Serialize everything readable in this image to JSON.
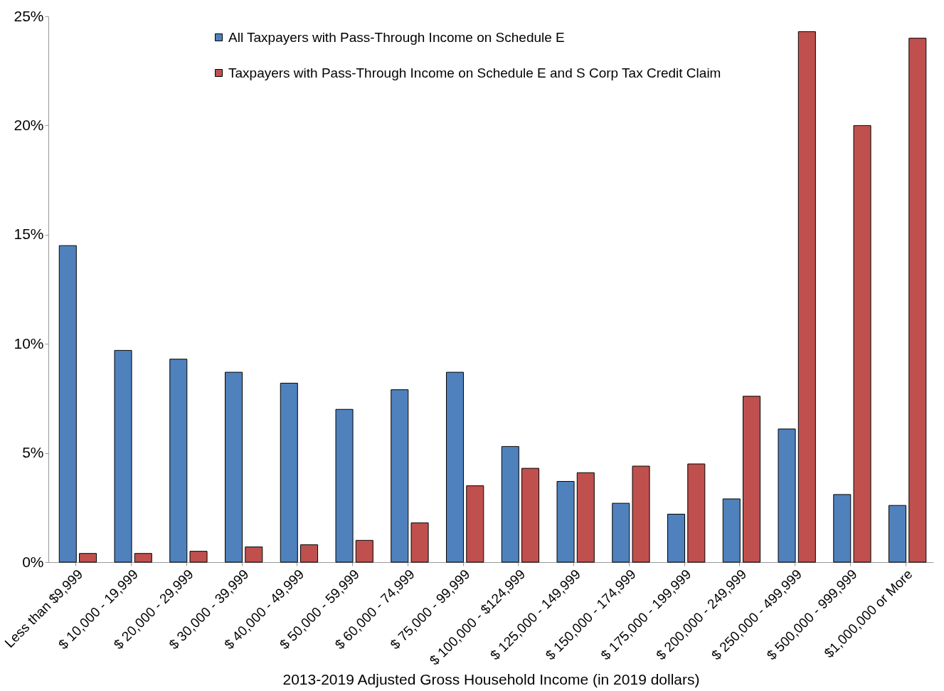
{
  "chart_data": {
    "type": "bar",
    "xlabel": "2013-2019 Adjusted Gross Household Income (in 2019 dollars)",
    "categories": [
      "Less than $9,999",
      "$ 10,000 - 19,999",
      "$ 20,000 - 29,999",
      "$ 30,000 - 39,999",
      "$ 40,000 - 49,999",
      "$ 50,000 - 59,999",
      "$ 60,000 - 74,999",
      "$ 75,000 - 99,999",
      "$ 100,000 - $124,999",
      "$ 125,000 - 149,999",
      "$ 150,000 - 174,999",
      "$ 175,000 - 199,999",
      "$ 200,000 - 249,999",
      "$ 250,000 - 499,999",
      "$ 500,000 - 999,999",
      "$1,000,000 or More"
    ],
    "series": [
      {
        "name": "All Taxpayers with Pass-Through Income on Schedule E",
        "color": "#4f81bd",
        "values": [
          14.5,
          9.7,
          9.3,
          8.7,
          8.2,
          7.0,
          7.9,
          8.7,
          5.3,
          3.7,
          2.7,
          2.2,
          2.9,
          6.1,
          3.1,
          2.6
        ]
      },
      {
        "name": "Taxpayers with Pass-Through Income on Schedule E and S Corp Tax Credit Claim",
        "color": "#c0504d",
        "values": [
          0.4,
          0.4,
          0.5,
          0.7,
          0.8,
          1.0,
          1.8,
          3.5,
          4.3,
          4.1,
          4.4,
          4.5,
          7.6,
          24.3,
          20.0,
          24.0
        ]
      }
    ],
    "ylim": [
      0,
      25
    ],
    "yticks": [
      {
        "value": 0,
        "label": "0%"
      },
      {
        "value": 5,
        "label": "5%"
      },
      {
        "value": 10,
        "label": "10%"
      },
      {
        "value": 15,
        "label": "15%"
      },
      {
        "value": 20,
        "label": "20%"
      },
      {
        "value": 25,
        "label": "25%"
      }
    ],
    "grid": false,
    "legend": "top"
  }
}
